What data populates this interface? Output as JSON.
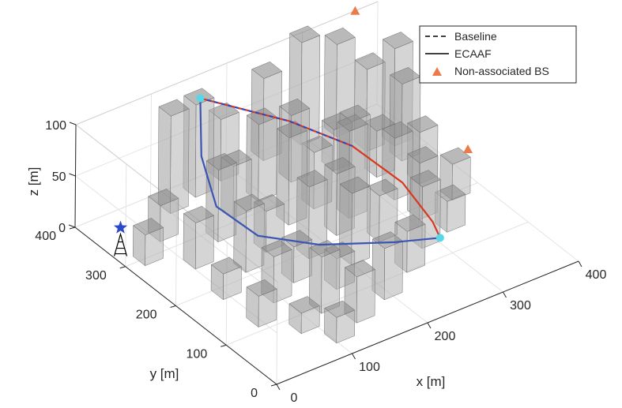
{
  "chart_data": {
    "type": "3d-scatter",
    "xlabel": "x [m]",
    "ylabel": "y [m]",
    "zlabel": "z [m]",
    "xlim": [
      0,
      400
    ],
    "ylim": [
      0,
      400
    ],
    "zlim": [
      0,
      100
    ],
    "x_ticks": [
      "0",
      "100",
      "200",
      "300",
      "400"
    ],
    "y_ticks": [
      "0",
      "100",
      "200",
      "300",
      "400"
    ],
    "z_ticks": [
      "0",
      "50",
      "100"
    ],
    "grid": true,
    "legend_position": "top-right",
    "legend": [
      {
        "label": "Baseline",
        "style": "dashed",
        "color": "#000000"
      },
      {
        "label": "ECAAF",
        "style": "solid",
        "color": "#000000"
      },
      {
        "label": "Non-associated BS",
        "style": "triangle-marker",
        "color": "#ec7a4a"
      }
    ],
    "colors": {
      "baseline_path": "#d9371e",
      "ecaaf_path": "#3a55b4",
      "associated_bs": "#2b48c8",
      "non_associated_bs": "#ec7a4a",
      "waypoint": "#56d8e8",
      "building": "#8f8f8f"
    },
    "series": [
      {
        "name": "Baseline",
        "x": [
          155,
          230,
          280,
          300,
          300,
          300
        ],
        "y": [
          385,
          320,
          270,
          200,
          140,
          125
        ],
        "z": [
          85,
          65,
          45,
          30,
          15,
          5
        ]
      },
      {
        "name": "ECAAF",
        "x": [
          155,
          120,
          100,
          115,
          170,
          250,
          300
        ],
        "y": [
          385,
          330,
          270,
          210,
          170,
          140,
          125
        ],
        "z": [
          85,
          60,
          40,
          30,
          20,
          10,
          5
        ]
      }
    ],
    "waypoints": [
      {
        "x": 155,
        "y": 385,
        "z": 85
      },
      {
        "x": 300,
        "y": 125,
        "z": 5
      }
    ],
    "associated_bs": {
      "x": 20,
      "y": 340,
      "z": 15
    },
    "non_associated_bs": [
      {
        "x": 370,
        "y": 400,
        "z": 100
      },
      {
        "x": 400,
        "y": 220,
        "z": 25
      }
    ],
    "buildings": [
      {
        "x": 30,
        "y": 300,
        "h": 30
      },
      {
        "x": 70,
        "y": 330,
        "h": 35
      },
      {
        "x": 110,
        "y": 370,
        "h": 95
      },
      {
        "x": 150,
        "y": 380,
        "h": 90
      },
      {
        "x": 190,
        "y": 390,
        "h": 60
      },
      {
        "x": 250,
        "y": 395,
        "h": 80
      },
      {
        "x": 300,
        "y": 395,
        "h": 100
      },
      {
        "x": 340,
        "y": 385,
        "h": 90
      },
      {
        "x": 70,
        "y": 260,
        "h": 45
      },
      {
        "x": 120,
        "y": 290,
        "h": 70
      },
      {
        "x": 160,
        "y": 320,
        "h": 50
      },
      {
        "x": 200,
        "y": 330,
        "h": 75
      },
      {
        "x": 250,
        "y": 340,
        "h": 65
      },
      {
        "x": 300,
        "y": 330,
        "h": 40
      },
      {
        "x": 350,
        "y": 340,
        "h": 80
      },
      {
        "x": 380,
        "y": 330,
        "h": 95
      },
      {
        "x": 60,
        "y": 190,
        "h": 25
      },
      {
        "x": 110,
        "y": 220,
        "h": 60
      },
      {
        "x": 150,
        "y": 240,
        "h": 40
      },
      {
        "x": 200,
        "y": 270,
        "h": 85
      },
      {
        "x": 240,
        "y": 280,
        "h": 55
      },
      {
        "x": 290,
        "y": 280,
        "h": 70
      },
      {
        "x": 330,
        "y": 290,
        "h": 45
      },
      {
        "x": 370,
        "y": 300,
        "h": 75
      },
      {
        "x": 60,
        "y": 120,
        "h": 30
      },
      {
        "x": 100,
        "y": 150,
        "h": 45
      },
      {
        "x": 140,
        "y": 170,
        "h": 35
      },
      {
        "x": 180,
        "y": 200,
        "h": 70
      },
      {
        "x": 230,
        "y": 220,
        "h": 60
      },
      {
        "x": 260,
        "y": 240,
        "h": 85
      },
      {
        "x": 320,
        "y": 240,
        "h": 60
      },
      {
        "x": 360,
        "y": 250,
        "h": 50
      },
      {
        "x": 90,
        "y": 80,
        "h": 20
      },
      {
        "x": 130,
        "y": 100,
        "h": 55
      },
      {
        "x": 170,
        "y": 130,
        "h": 30
      },
      {
        "x": 210,
        "y": 160,
        "h": 70
      },
      {
        "x": 260,
        "y": 180,
        "h": 45
      },
      {
        "x": 320,
        "y": 190,
        "h": 55
      },
      {
        "x": 370,
        "y": 200,
        "h": 35
      },
      {
        "x": 110,
        "y": 40,
        "h": 25
      },
      {
        "x": 150,
        "y": 60,
        "h": 45
      },
      {
        "x": 200,
        "y": 80,
        "h": 50
      },
      {
        "x": 250,
        "y": 110,
        "h": 40
      },
      {
        "x": 290,
        "y": 140,
        "h": 60
      },
      {
        "x": 330,
        "y": 150,
        "h": 30
      }
    ]
  }
}
